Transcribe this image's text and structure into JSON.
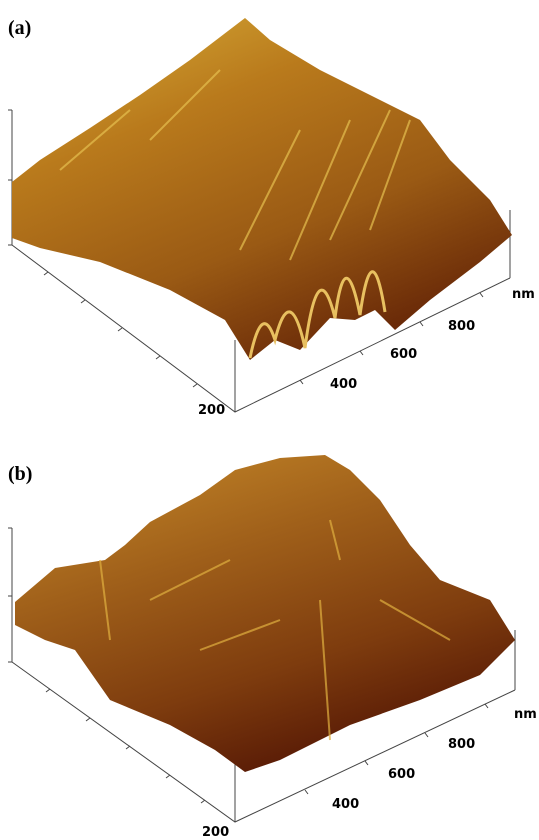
{
  "panels": [
    {
      "label": "(a)",
      "ticks": [
        "200",
        "400",
        "600",
        "800"
      ],
      "unit": "nm"
    },
    {
      "label": "(b)",
      "ticks": [
        "200",
        "400",
        "600",
        "800"
      ],
      "unit": "nm"
    }
  ]
}
